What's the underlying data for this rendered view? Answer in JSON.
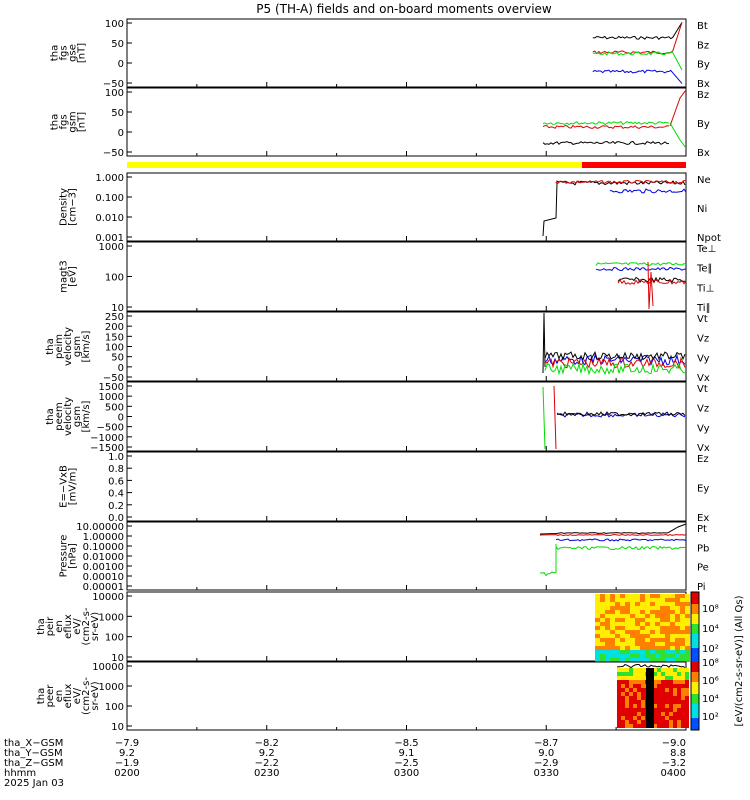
{
  "title": "P5 (TH-A) fields and on-board moments overview",
  "date": "2025 Jan 03",
  "colors": {
    "black": "#000000",
    "red": "#dd0000",
    "green": "#00dd00",
    "blue": "#0000dd",
    "yellow": "#ffff00",
    "bar_red": "#ff0000"
  },
  "panels": [
    {
      "id": "fgs_gse",
      "ylabel": [
        "tha",
        "fgs",
        "gse",
        "[nT]"
      ],
      "yticks": [
        "100",
        "50",
        "0",
        "−50"
      ],
      "legend": [
        {
          "text": "Bt",
          "color": "black"
        },
        {
          "text": "Bz",
          "color": "red"
        },
        {
          "text": "By",
          "color": "green"
        },
        {
          "text": "Bx",
          "color": "blue"
        }
      ]
    },
    {
      "id": "fgs_gsm",
      "ylabel": [
        "tha",
        "fgs",
        "gsm",
        "[nT]"
      ],
      "yticks": [
        "100",
        "50",
        "0",
        "−50"
      ],
      "legend": [
        {
          "text": "Bz",
          "color": "red"
        },
        {
          "text": "By",
          "color": "green"
        },
        {
          "text": "Bx",
          "color": "black"
        }
      ]
    },
    {
      "id": "density",
      "ylabel": [
        "Density",
        "[cm−3]"
      ],
      "yticks": [
        "1.000",
        "0.100",
        "0.010",
        "0.001"
      ],
      "legend": [
        {
          "text": "Ne",
          "color": "red"
        },
        {
          "text": "Ni",
          "color": "black"
        },
        {
          "text": "Npot",
          "color": "blue"
        }
      ]
    },
    {
      "id": "temperature",
      "ylabel": [
        "magt3",
        "[eV]"
      ],
      "yticks": [
        "1000",
        "100",
        "10"
      ],
      "legend": [
        {
          "text": "Te⊥",
          "color": "red"
        },
        {
          "text": "Te∥",
          "color": "black"
        },
        {
          "text": "Ti⊥",
          "color": "red"
        },
        {
          "text": "Ti∥",
          "color": "green"
        }
      ]
    },
    {
      "id": "peim_velocity",
      "ylabel": [
        "tha",
        "peim",
        "velocity",
        "gsm",
        "[km/s]"
      ],
      "yticks": [
        "250",
        "200",
        "150",
        "100",
        "50",
        "0",
        "−50"
      ],
      "legend": [
        {
          "text": "Vt",
          "color": "black"
        },
        {
          "text": "Vz",
          "color": "red"
        },
        {
          "text": "Vy",
          "color": "green"
        },
        {
          "text": "Vx",
          "color": "blue"
        }
      ]
    },
    {
      "id": "peem_velocity",
      "ylabel": [
        "tha",
        "peem",
        "velocity",
        "gsm",
        "[km/s]"
      ],
      "yticks": [
        "1500",
        "1000",
        "500",
        "0",
        "−500",
        "−1000",
        "−1500"
      ],
      "legend": [
        {
          "text": "Vt",
          "color": "black"
        },
        {
          "text": "Vz",
          "color": "red"
        },
        {
          "text": "Vy",
          "color": "green"
        },
        {
          "text": "Vx",
          "color": "blue"
        }
      ]
    },
    {
      "id": "efield",
      "ylabel": [
        "E=−VxB",
        "[mV/m]"
      ],
      "yticks": [
        "1.0",
        "0.8",
        "0.6",
        "0.4",
        "0.2",
        "0.0"
      ],
      "legend": [
        {
          "text": "Ez",
          "color": "red"
        },
        {
          "text": "Ey",
          "color": "green"
        },
        {
          "text": "Ex",
          "color": "blue"
        }
      ]
    },
    {
      "id": "pressure",
      "ylabel": [
        "Pressure",
        "[nPa]"
      ],
      "yticks": [
        "10.00000",
        "1.00000",
        "0.10000",
        "0.01000",
        "0.00100",
        "0.00010",
        "0.00001"
      ],
      "legend": [
        {
          "text": "Pt",
          "color": "black"
        },
        {
          "text": "Pb",
          "color": "red"
        },
        {
          "text": "Pe",
          "color": "green"
        },
        {
          "text": "Pi",
          "color": "blue"
        }
      ]
    },
    {
      "id": "peir_spec",
      "ylabel": [
        "tha",
        "peir",
        "en",
        "eflux",
        "eV/",
        "(cm2-s-",
        "sr-eV)"
      ],
      "yticks": [
        "10000",
        "1000",
        "100",
        "10"
      ],
      "cbar_ticks": [
        "10⁸",
        "10⁴",
        "10²"
      ]
    },
    {
      "id": "peer_spec",
      "ylabel": [
        "tha",
        "peer",
        "en",
        "eflux",
        "eV/",
        "(cm2-s-",
        "sr-eV)"
      ],
      "yticks": [
        "10000",
        "1000",
        "100",
        "10"
      ],
      "cbar_ticks": [
        "10⁸",
        "10⁶",
        "10⁴",
        "10²"
      ]
    }
  ],
  "cbar_label": "[eV/(cm2-s-sr-eV)] (All Qs)",
  "ephemeris": {
    "rows": [
      {
        "label": "tha_X−GSM",
        "values": [
          "−7.9",
          "−8.2",
          "−8.5",
          "−8.7",
          "−9.0"
        ]
      },
      {
        "label": "tha_Y−GSM",
        "values": [
          "9.2",
          "9.2",
          "9.1",
          "9.0",
          "8.8"
        ]
      },
      {
        "label": "tha_Z−GSM",
        "values": [
          "−1.9",
          "−2.2",
          "−2.5",
          "−2.9",
          "−3.2"
        ]
      },
      {
        "label": "hhmm",
        "values": [
          "0200",
          "0230",
          "0300",
          "0330",
          "0400"
        ]
      }
    ]
  },
  "chart_data": {
    "type": "line",
    "x": [
      "0200",
      "0230",
      "0300",
      "0330",
      "0400"
    ],
    "xlabel": "hhmm",
    "ylim_fgs": [
      -90,
      110
    ],
    "series": [
      {
        "name": "Bt",
        "x": [
          "0340",
          "0350",
          "0355",
          "0400"
        ],
        "values": [
          55,
          54,
          58,
          100
        ]
      },
      {
        "name": "Bz",
        "x": [
          "0340",
          "0350",
          "0355",
          "0400"
        ],
        "values": [
          12,
          12,
          15,
          100
        ]
      },
      {
        "name": "By",
        "x": [
          "0340",
          "0350",
          "0355",
          "0400"
        ],
        "values": [
          8,
          10,
          8,
          -40
        ]
      },
      {
        "name": "Bx",
        "x": [
          "0340",
          "0350",
          "0355",
          "0400"
        ],
        "values": [
          -45,
          -44,
          -40,
          -80
        ]
      }
    ]
  }
}
